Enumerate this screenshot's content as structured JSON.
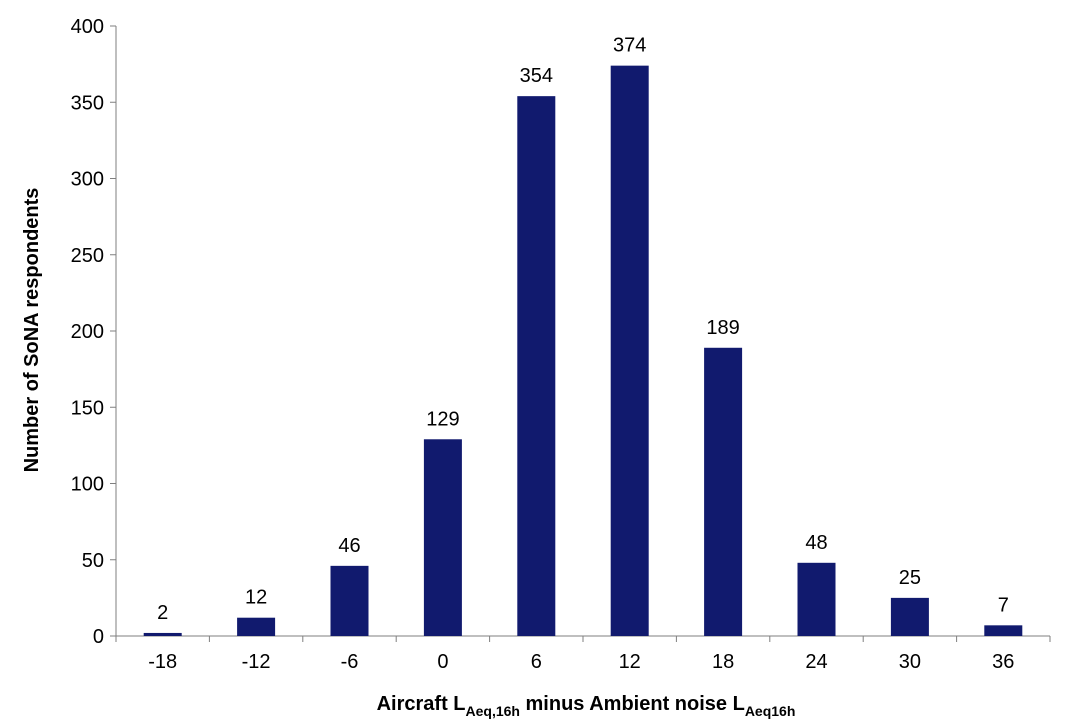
{
  "chart_data": {
    "type": "bar",
    "categories": [
      "-18",
      "-12",
      "-6",
      "0",
      "6",
      "12",
      "18",
      "24",
      "30",
      "36"
    ],
    "values": [
      2,
      12,
      46,
      129,
      354,
      374,
      189,
      48,
      25,
      7
    ],
    "data_labels": [
      "2",
      "12",
      "46",
      "129",
      "354",
      "374",
      "189",
      "48",
      "25",
      "7"
    ],
    "ylim": [
      0,
      400
    ],
    "yticks": [
      0,
      50,
      100,
      150,
      200,
      250,
      300,
      350,
      400
    ],
    "ylabel": "Number of SoNA respondents",
    "xlabel": {
      "part1": "Aircraft L",
      "sub1": "Aeq,16h",
      "part2": " minus Ambient noise L",
      "sub2": "Aeq16h"
    },
    "grid": false,
    "legend": "none",
    "bar_color": "#111a6e"
  }
}
